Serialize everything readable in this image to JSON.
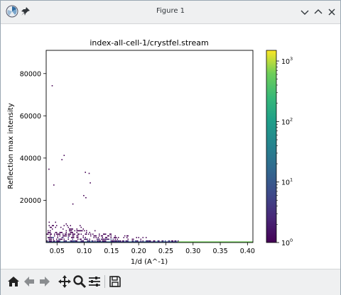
{
  "window": {
    "title": "Figure 1"
  },
  "titlebar": {
    "app_icon": "matplotlib-icon",
    "pin_icon": "pin-icon",
    "buttons": [
      "minimize-chevron-down-icon",
      "maximize-chevron-up-icon",
      "close-icon"
    ]
  },
  "toolbar": {
    "tools": [
      "home-icon",
      "back-arrow-icon",
      "forward-arrow-icon",
      "pan-move-icon",
      "zoom-magnifier-icon",
      "configure-subplots-icon",
      "save-floppy-icon"
    ]
  },
  "chart_data": {
    "type": "heatmap",
    "title": "index-all-cell-1/crystfel.stream",
    "xlabel": "1/d (A^-1)",
    "ylabel": "Reflection max intensity",
    "xlim": [
      0.03,
      0.41
    ],
    "ylim": [
      0,
      91000
    ],
    "xticks": [
      0.05,
      0.1,
      0.15,
      0.2,
      0.25,
      0.3,
      0.35,
      0.4
    ],
    "xtick_labels": [
      "0.05",
      "0.10",
      "0.15",
      "0.20",
      "0.25",
      "0.30",
      "0.35",
      "0.40"
    ],
    "yticks": [
      20000,
      40000,
      60000,
      80000
    ],
    "ytick_labels": [
      "20000",
      "40000",
      "60000",
      "80000"
    ],
    "colorbar": {
      "scale": "log",
      "range": [
        1,
        1500
      ],
      "ticks": [
        1,
        10,
        100,
        1000
      ],
      "tick_labels": [
        "10",
        "10",
        "10",
        "10"
      ],
      "tick_exponents": [
        "0",
        "1",
        "2",
        "3"
      ],
      "colormap": "viridis"
    },
    "outliers": [
      {
        "x": 0.04,
        "y": 74500
      },
      {
        "x": 0.062,
        "y": 41500
      },
      {
        "x": 0.058,
        "y": 39500
      },
      {
        "x": 0.101,
        "y": 33500
      },
      {
        "x": 0.108,
        "y": 33000
      },
      {
        "x": 0.034,
        "y": 35000
      },
      {
        "x": 0.043,
        "y": 27500
      },
      {
        "x": 0.098,
        "y": 22500
      },
      {
        "x": 0.102,
        "y": 21500
      },
      {
        "x": 0.11,
        "y": 28500
      },
      {
        "x": 0.078,
        "y": 18500
      }
    ],
    "envelope": [
      {
        "x": 0.03,
        "y": 13000
      },
      {
        "x": 0.05,
        "y": 11000
      },
      {
        "x": 0.08,
        "y": 9000
      },
      {
        "x": 0.1,
        "y": 8000
      },
      {
        "x": 0.13,
        "y": 6000
      },
      {
        "x": 0.16,
        "y": 4000
      },
      {
        "x": 0.2,
        "y": 3000
      },
      {
        "x": 0.24,
        "y": 2000
      },
      {
        "x": 0.28,
        "y": 900
      },
      {
        "x": 0.32,
        "y": 400
      },
      {
        "x": 0.36,
        "y": 250
      },
      {
        "x": 0.4,
        "y": 200
      }
    ],
    "dense_band": {
      "y_max": 1000
    }
  }
}
